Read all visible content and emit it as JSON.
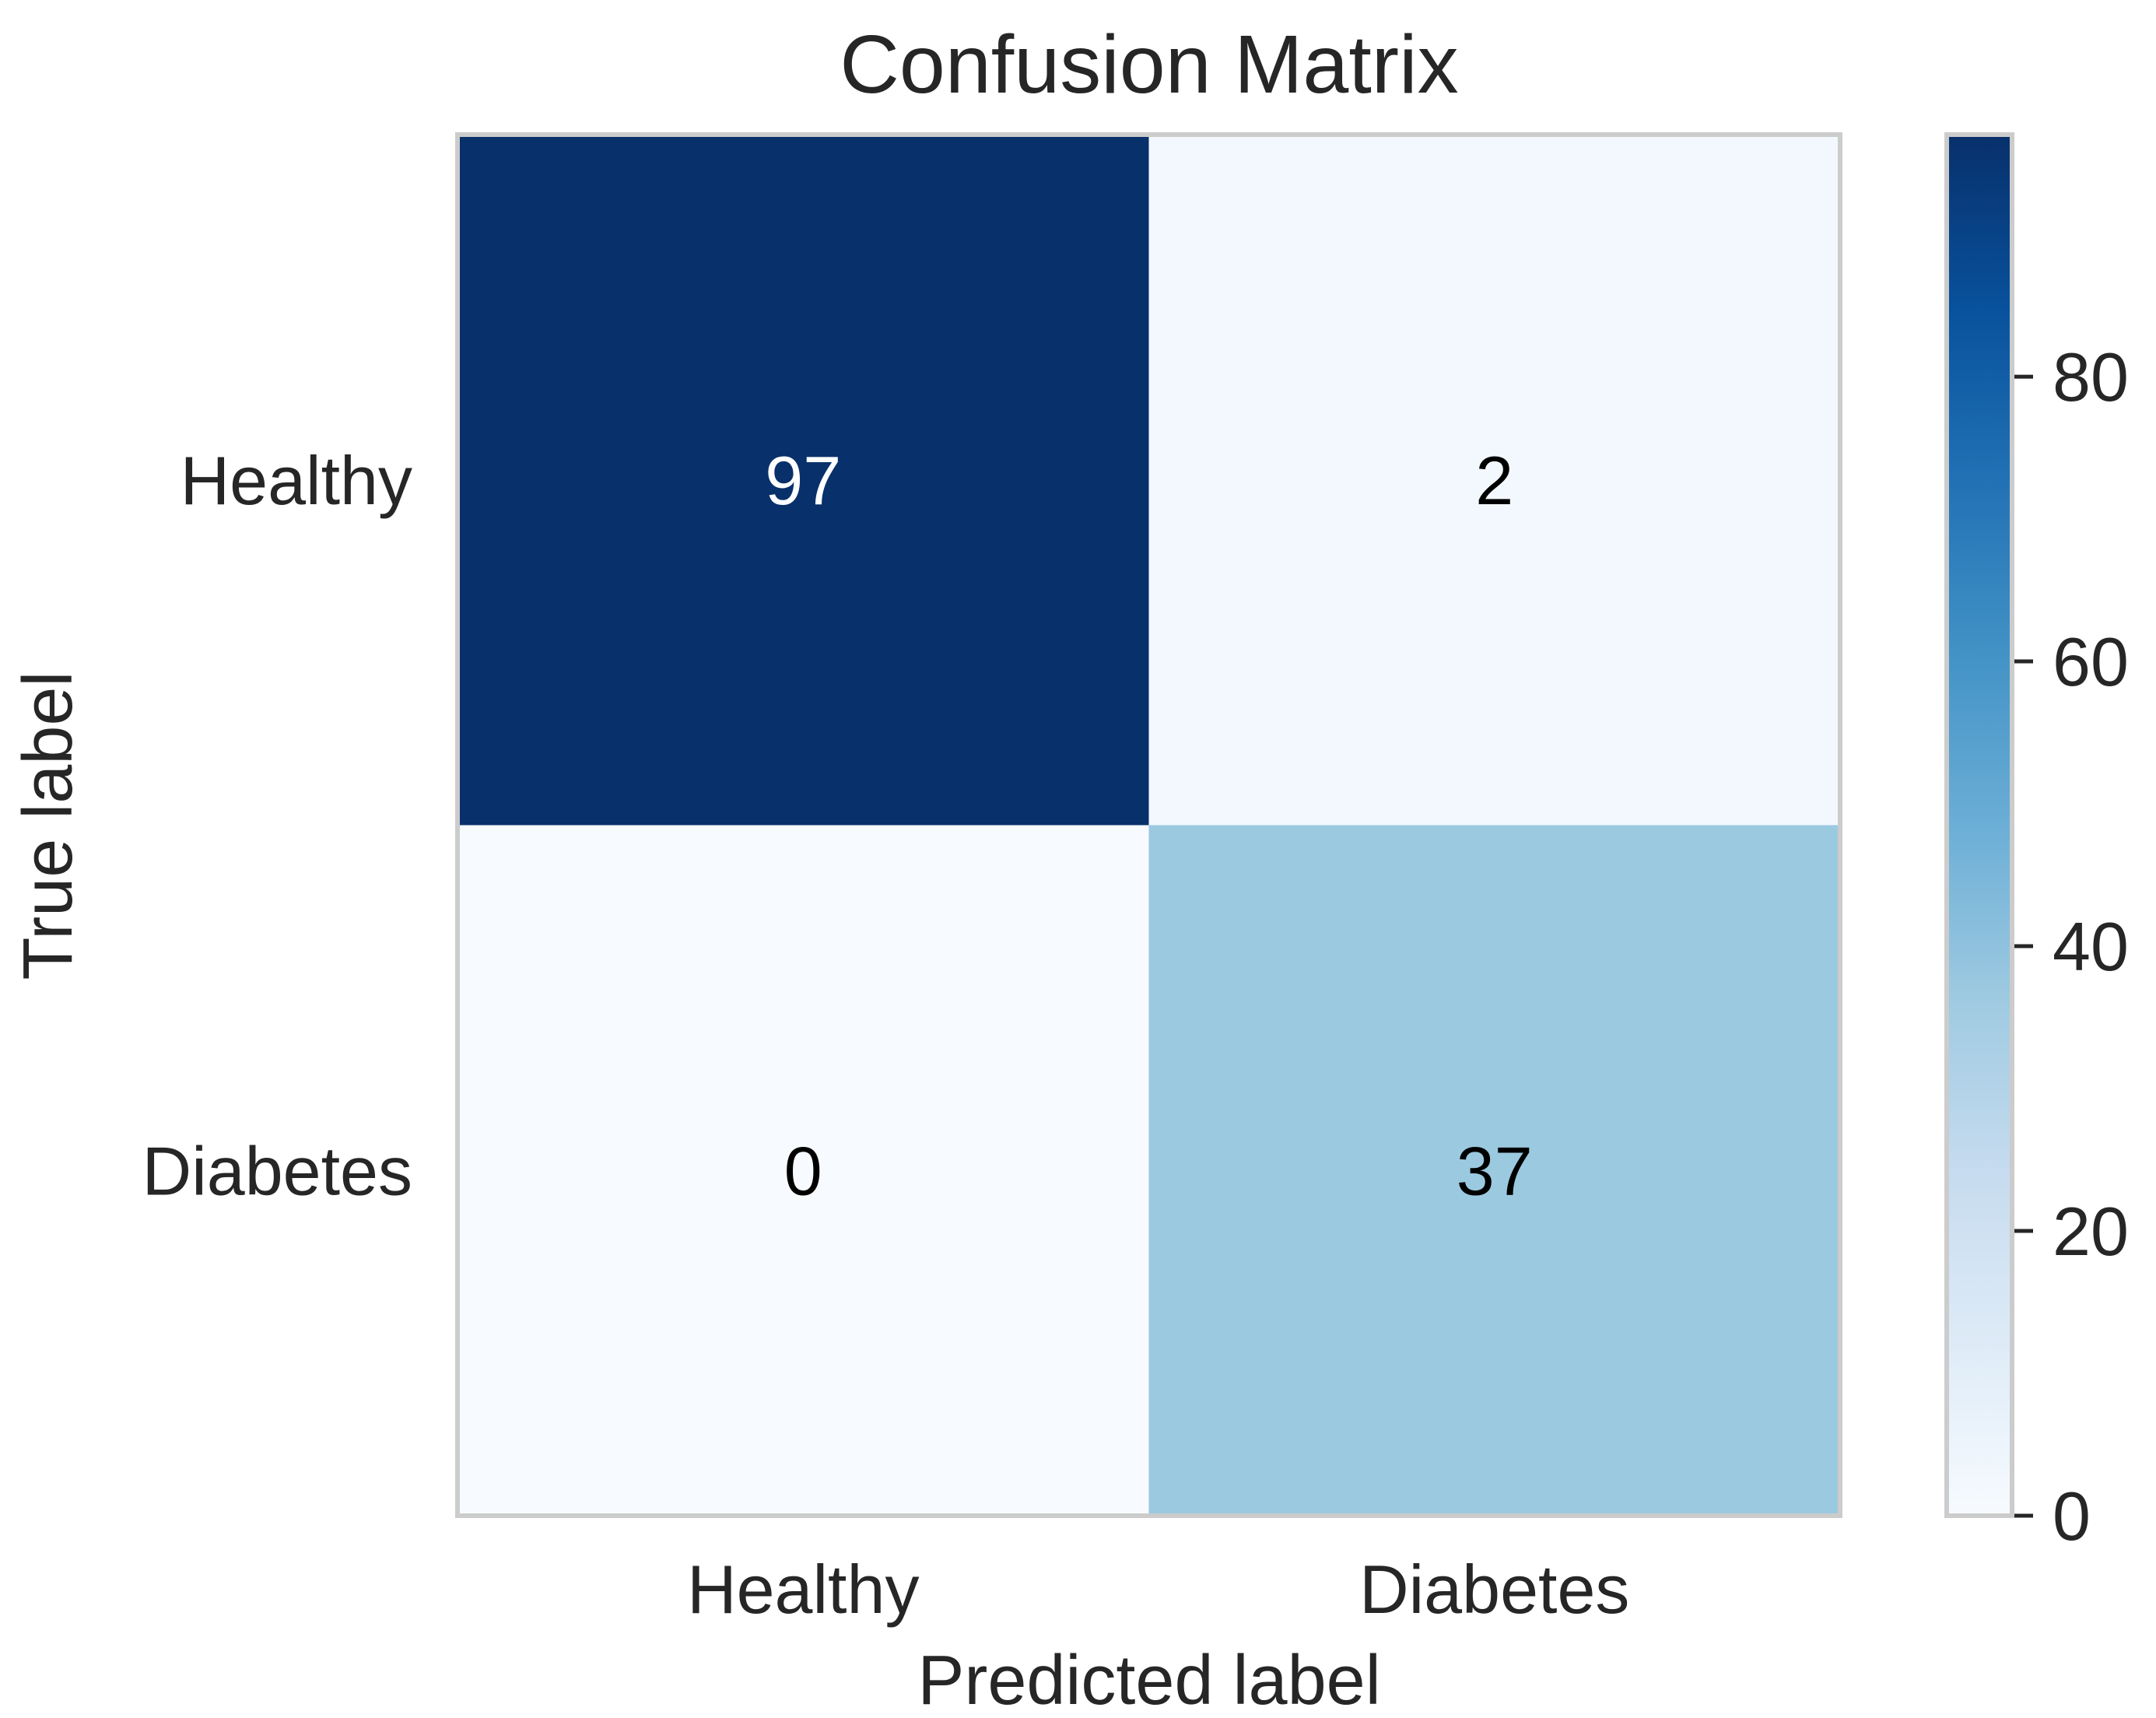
{
  "chart_data": {
    "type": "heatmap",
    "title": "Confusion Matrix",
    "xlabel": "Predicted label",
    "ylabel": "True label",
    "x_categories": [
      "Healthy",
      "Diabetes"
    ],
    "y_categories": [
      "Healthy",
      "Diabetes"
    ],
    "values": [
      [
        97,
        2
      ],
      [
        0,
        37
      ]
    ],
    "colormap": "Blues",
    "colorbar": {
      "range": [
        0,
        97
      ],
      "ticks": [
        0,
        20,
        40,
        60,
        80
      ]
    },
    "text_colors": {
      "dark_cell": "#ffffff",
      "light_cell": "#000000"
    },
    "colors": {
      "frame": "#cccccc",
      "text": "#262626",
      "cmap_stops": [
        "#f7fbff",
        "#deebf7",
        "#c6dbef",
        "#9ecae1",
        "#6baed6",
        "#4292c6",
        "#2171b5",
        "#08519c",
        "#08306b"
      ]
    }
  }
}
